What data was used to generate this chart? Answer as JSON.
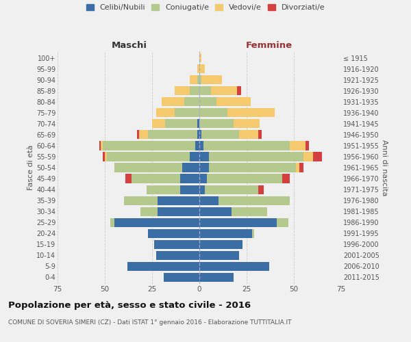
{
  "age_groups": [
    "0-4",
    "5-9",
    "10-14",
    "15-19",
    "20-24",
    "25-29",
    "30-34",
    "35-39",
    "40-44",
    "45-49",
    "50-54",
    "55-59",
    "60-64",
    "65-69",
    "70-74",
    "75-79",
    "80-84",
    "85-89",
    "90-94",
    "95-99",
    "100+"
  ],
  "birth_years": [
    "2011-2015",
    "2006-2010",
    "2001-2005",
    "1996-2000",
    "1991-1995",
    "1986-1990",
    "1981-1985",
    "1976-1980",
    "1971-1975",
    "1966-1970",
    "1961-1965",
    "1956-1960",
    "1951-1955",
    "1946-1950",
    "1941-1945",
    "1936-1940",
    "1931-1935",
    "1926-1930",
    "1921-1925",
    "1916-1920",
    "≤ 1915"
  ],
  "colors": {
    "celibe": "#3a6ea5",
    "coniugato": "#b5c98e",
    "vedovo": "#f5c96e",
    "divorziato": "#d43f3f"
  },
  "maschi": {
    "celibe": [
      19,
      38,
      23,
      24,
      27,
      45,
      22,
      22,
      10,
      10,
      9,
      5,
      2,
      1,
      1,
      0,
      0,
      0,
      0,
      0,
      0
    ],
    "coniugato": [
      0,
      0,
      0,
      0,
      0,
      2,
      9,
      18,
      18,
      26,
      36,
      44,
      49,
      26,
      17,
      13,
      8,
      5,
      1,
      0,
      0
    ],
    "vedovo": [
      0,
      0,
      0,
      0,
      0,
      0,
      0,
      0,
      0,
      0,
      0,
      1,
      1,
      5,
      7,
      10,
      12,
      8,
      4,
      1,
      0
    ],
    "divorziato": [
      0,
      0,
      0,
      0,
      0,
      0,
      0,
      0,
      0,
      3,
      0,
      1,
      1,
      1,
      0,
      0,
      0,
      0,
      0,
      0,
      0
    ]
  },
  "femmine": {
    "nubile": [
      18,
      37,
      21,
      23,
      28,
      41,
      17,
      10,
      3,
      4,
      5,
      5,
      2,
      1,
      0,
      0,
      0,
      0,
      0,
      0,
      0
    ],
    "coniugata": [
      0,
      0,
      0,
      0,
      1,
      6,
      19,
      38,
      28,
      40,
      46,
      50,
      46,
      20,
      18,
      15,
      9,
      6,
      1,
      0,
      0
    ],
    "vedova": [
      0,
      0,
      0,
      0,
      0,
      0,
      0,
      0,
      0,
      0,
      2,
      5,
      8,
      10,
      14,
      25,
      18,
      14,
      11,
      3,
      1
    ],
    "divorziata": [
      0,
      0,
      0,
      0,
      0,
      0,
      0,
      0,
      3,
      4,
      2,
      5,
      2,
      2,
      0,
      0,
      0,
      2,
      0,
      0,
      0
    ]
  },
  "xlim": 75,
  "title": "Popolazione per età, sesso e stato civile - 2016",
  "subtitle": "COMUNE DI SOVERIA SIMERI (CZ) - Dati ISTAT 1° gennaio 2016 - Elaborazione TUTTITALIA.IT",
  "ylabel_left": "Fasce di età",
  "ylabel_right": "Anni di nascita",
  "xlabel_left": "Maschi",
  "xlabel_right": "Femmine",
  "bg_color": "#f0f0f0",
  "legend_labels": [
    "Celibi/Nubili",
    "Coniugati/e",
    "Vedovi/e",
    "Divorziati/e"
  ]
}
